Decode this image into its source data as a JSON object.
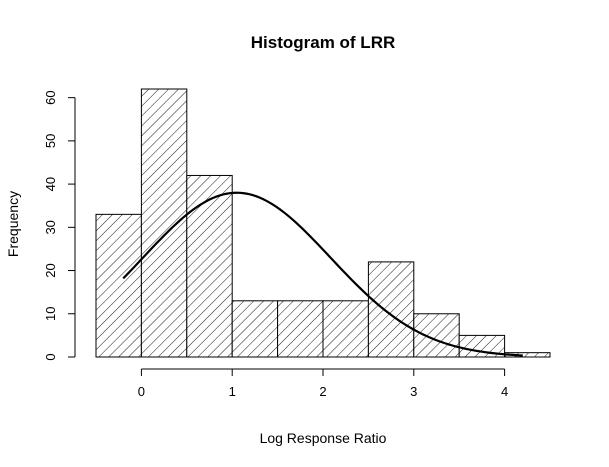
{
  "chart_data": {
    "type": "bar",
    "title": "Histogram of LRR",
    "xlabel": "Log Response Ratio",
    "ylabel": "Frequency",
    "bins": [
      {
        "x0": -0.5,
        "x1": 0.0,
        "count": 33
      },
      {
        "x0": 0.0,
        "x1": 0.5,
        "count": 62
      },
      {
        "x0": 0.5,
        "x1": 1.0,
        "count": 42
      },
      {
        "x0": 1.0,
        "x1": 1.5,
        "count": 13
      },
      {
        "x0": 1.5,
        "x1": 2.0,
        "count": 13
      },
      {
        "x0": 2.0,
        "x1": 2.5,
        "count": 13
      },
      {
        "x0": 2.5,
        "x1": 3.0,
        "count": 22
      },
      {
        "x0": 3.0,
        "x1": 3.5,
        "count": 10
      },
      {
        "x0": 3.5,
        "x1": 4.0,
        "count": 5
      },
      {
        "x0": 4.0,
        "x1": 4.5,
        "count": 1
      }
    ],
    "fill_pattern": "diagonal-hatch",
    "overlay_curve": {
      "type": "normal",
      "mean": 1.05,
      "sd": 1.03,
      "peak": 38,
      "x_range": [
        -0.2,
        4.2
      ]
    },
    "xlim": [
      -0.5,
      4.5
    ],
    "ylim": [
      0,
      62
    ],
    "x_ticks": [
      0,
      1,
      2,
      3,
      4
    ],
    "x_tick_labels": [
      "0",
      "1",
      "2",
      "3",
      "4"
    ],
    "y_ticks": [
      0,
      10,
      20,
      30,
      40,
      50,
      60
    ],
    "y_tick_labels": [
      "0",
      "10",
      "20",
      "30",
      "40",
      "50",
      "60"
    ],
    "grid": false,
    "colors": {
      "bars": "#ffffff",
      "stroke": "#000000",
      "hatch": "#000000",
      "curve": "#000000"
    }
  }
}
